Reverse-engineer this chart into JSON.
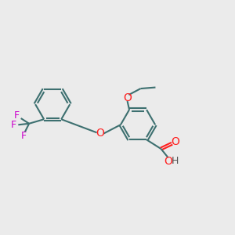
{
  "bg_color": "#ebebeb",
  "bond_color": "#3d7070",
  "o_color": "#ff2020",
  "f_color": "#cc00cc",
  "h_color": "#555555",
  "lw": 1.5,
  "dbo": 0.055,
  "ring_r": 0.72,
  "xlim": [
    0.2,
    9.8
  ],
  "ylim": [
    1.0,
    7.5
  ]
}
